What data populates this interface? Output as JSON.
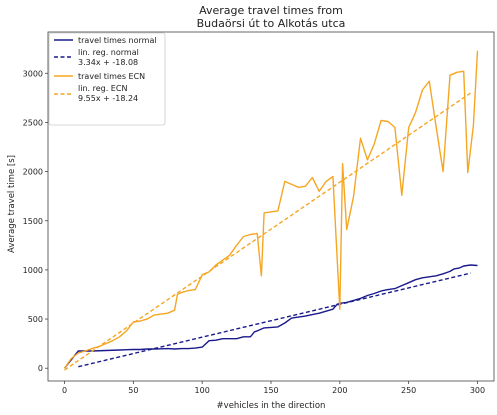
{
  "chart_data": {
    "type": "line",
    "title_lines": [
      "Average travel times from",
      "Budaörsi út to Alkotás utca"
    ],
    "xlabel": "#vehicles in the direction",
    "ylabel": "Average travel time [s]",
    "xlim": [
      -12,
      312
    ],
    "ylim": [
      -130,
      3420
    ],
    "x_ticks": [
      0,
      50,
      100,
      150,
      200,
      250,
      300
    ],
    "y_ticks": [
      0,
      500,
      1000,
      1500,
      2000,
      2500,
      3000
    ],
    "legend_position": "upper-left",
    "series": [
      {
        "name": "travel times normal",
        "legend_text": "travel times normal",
        "color": "#1a1a8c",
        "style": "solid",
        "x": [
          0,
          10,
          20,
          30,
          40,
          50,
          55,
          60,
          65,
          70,
          75,
          80,
          85,
          90,
          95,
          100,
          105,
          110,
          115,
          120,
          125,
          130,
          135,
          138,
          140,
          145,
          150,
          155,
          160,
          165,
          170,
          175,
          180,
          185,
          190,
          195,
          198,
          200,
          205,
          210,
          215,
          220,
          225,
          230,
          235,
          240,
          245,
          250,
          255,
          260,
          265,
          270,
          275,
          280,
          283,
          287,
          290,
          295,
          300
        ],
        "y": [
          0,
          175,
          175,
          180,
          185,
          190,
          190,
          195,
          195,
          198,
          200,
          195,
          200,
          200,
          205,
          215,
          280,
          285,
          300,
          300,
          300,
          320,
          320,
          370,
          380,
          410,
          415,
          420,
          460,
          510,
          520,
          530,
          545,
          560,
          580,
          600,
          650,
          660,
          670,
          690,
          710,
          740,
          760,
          785,
          800,
          810,
          840,
          870,
          900,
          920,
          930,
          940,
          960,
          985,
          1010,
          1020,
          1040,
          1050,
          1045
        ]
      },
      {
        "name": "lin. reg. normal",
        "legend_text": [
          "lin. reg. normal",
          "3.34x + -18.08"
        ],
        "color": "#1a1a8c",
        "style": "dashed",
        "x": [
          10,
          295
        ],
        "y": [
          15.32,
          967.22
        ]
      },
      {
        "name": "travel times ECN",
        "legend_text": "travel times ECN",
        "color": "#f5a623",
        "style": "solid",
        "x": [
          0,
          5,
          10,
          15,
          20,
          25,
          30,
          35,
          40,
          45,
          50,
          55,
          60,
          65,
          70,
          75,
          80,
          82,
          85,
          90,
          95,
          100,
          105,
          110,
          115,
          120,
          125,
          130,
          135,
          140,
          143,
          145,
          150,
          155,
          160,
          165,
          170,
          175,
          180,
          185,
          190,
          195,
          200,
          202,
          205,
          210,
          215,
          220,
          225,
          230,
          235,
          240,
          245,
          250,
          255,
          260,
          265,
          270,
          275,
          280,
          285,
          290,
          293,
          297,
          300
        ],
        "y": [
          0,
          100,
          155,
          175,
          200,
          220,
          250,
          280,
          320,
          380,
          470,
          480,
          500,
          540,
          550,
          560,
          590,
          750,
          770,
          790,
          800,
          950,
          980,
          1050,
          1100,
          1150,
          1250,
          1340,
          1360,
          1370,
          940,
          1580,
          1590,
          1600,
          1900,
          1870,
          1840,
          1850,
          1940,
          1800,
          1900,
          1950,
          600,
          2080,
          1410,
          1750,
          2340,
          2120,
          2280,
          2520,
          2510,
          2450,
          1760,
          2450,
          2600,
          2830,
          2920,
          2450,
          2000,
          2980,
          3010,
          3020,
          1990,
          2470,
          3230
        ]
      },
      {
        "name": "lin. reg. ECN",
        "legend_text": [
          "lin. reg. ECN",
          "9.55x + -18.24"
        ],
        "color": "#f5a623",
        "style": "dashed",
        "x": [
          0,
          295
        ],
        "y": [
          -18.24,
          2799.01
        ]
      }
    ]
  }
}
